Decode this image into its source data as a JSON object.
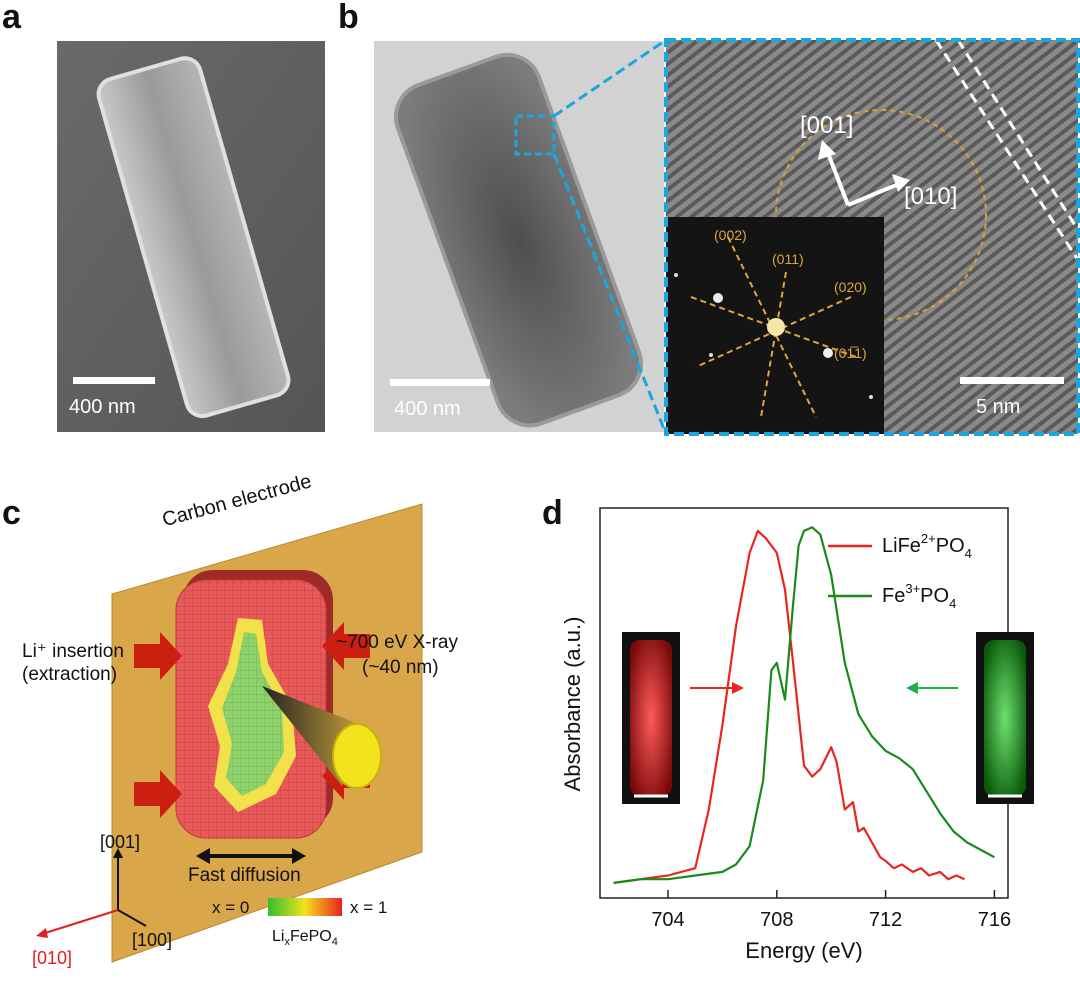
{
  "panels": {
    "a": {
      "letter": "a",
      "scale_label": "400 nm"
    },
    "b": {
      "letter": "b",
      "scale_label_left": "400 nm",
      "scale_label_right": "5 nm",
      "dir_001": "[001]",
      "dir_010": "[010]",
      "fft_labels": [
        "(002)",
        "(011)",
        "(020)",
        "(01̅1)"
      ]
    },
    "c": {
      "letter": "c",
      "carbon_label": "Carbon electrode",
      "li_insertion_line1": "Li⁺ insertion",
      "li_insertion_line2": "(extraction)",
      "xray_line1": "~700 eV X-ray",
      "xray_line2": "(~40 nm)",
      "fast_diffusion": "Fast diffusion",
      "axis_001": "[001]",
      "axis_010": "[010]",
      "axis_100": "[100]",
      "x0": "x = 0",
      "x1": "x = 1",
      "colorbar_label": "LixFePO4",
      "colors": {
        "carbon": "#d9a74a",
        "lfp": "#e85a5a",
        "boundary": "#f2e14a",
        "fp": "#8fd16a",
        "arrow": "#cc1f12"
      }
    },
    "d": {
      "letter": "d",
      "colors": {
        "lfp": "#e8261e",
        "fp": "#1a8a1a"
      }
    }
  },
  "chart_data": {
    "type": "line",
    "title": "",
    "xlabel": "Energy (eV)",
    "ylabel": "Absorbance (a.u.)",
    "xlim": [
      701.5,
      716.5
    ],
    "ylim": [
      0,
      1
    ],
    "xticks": [
      704,
      708,
      712,
      716
    ],
    "legend_position": "top-right",
    "series": [
      {
        "name": "LiFe2+PO4",
        "label_parts": [
          "LiFe",
          "2+",
          "PO",
          "4"
        ],
        "color": "#e8261e",
        "x": [
          702.0,
          703.0,
          704.0,
          705.0,
          705.5,
          706.0,
          706.5,
          707.0,
          707.3,
          707.6,
          708.0,
          708.3,
          708.6,
          709.0,
          709.3,
          709.6,
          710.0,
          710.2,
          710.5,
          710.8,
          711.0,
          711.2,
          711.5,
          711.8,
          712.0,
          712.3,
          712.6,
          713.0,
          713.3,
          713.6,
          714.0,
          714.3,
          714.6,
          714.9
        ],
        "y": [
          0.02,
          0.03,
          0.04,
          0.06,
          0.22,
          0.45,
          0.72,
          0.92,
          0.98,
          0.96,
          0.92,
          0.82,
          0.62,
          0.34,
          0.31,
          0.33,
          0.39,
          0.35,
          0.22,
          0.24,
          0.16,
          0.17,
          0.13,
          0.09,
          0.08,
          0.06,
          0.07,
          0.05,
          0.06,
          0.04,
          0.05,
          0.03,
          0.04,
          0.03
        ]
      },
      {
        "name": "Fe3+PO4",
        "label_parts": [
          "Fe",
          "3+",
          "PO",
          "4"
        ],
        "color": "#1a8a1a",
        "x": [
          702.0,
          703.0,
          704.0,
          705.0,
          706.0,
          706.5,
          707.0,
          707.5,
          707.8,
          708.0,
          708.3,
          708.6,
          708.8,
          709.0,
          709.3,
          709.6,
          710.0,
          710.5,
          711.0,
          711.5,
          712.0,
          712.5,
          713.0,
          713.5,
          714.0,
          714.5,
          715.0,
          715.5,
          716.0
        ],
        "y": [
          0.02,
          0.03,
          0.03,
          0.04,
          0.05,
          0.07,
          0.12,
          0.3,
          0.6,
          0.62,
          0.52,
          0.78,
          0.94,
          0.98,
          0.99,
          0.97,
          0.86,
          0.62,
          0.48,
          0.42,
          0.38,
          0.36,
          0.33,
          0.27,
          0.21,
          0.16,
          0.13,
          0.11,
          0.09
        ]
      }
    ],
    "inset_arrows": [
      {
        "series": "LiFe2+PO4",
        "direction": "right"
      },
      {
        "series": "Fe3+PO4",
        "direction": "left"
      }
    ]
  }
}
